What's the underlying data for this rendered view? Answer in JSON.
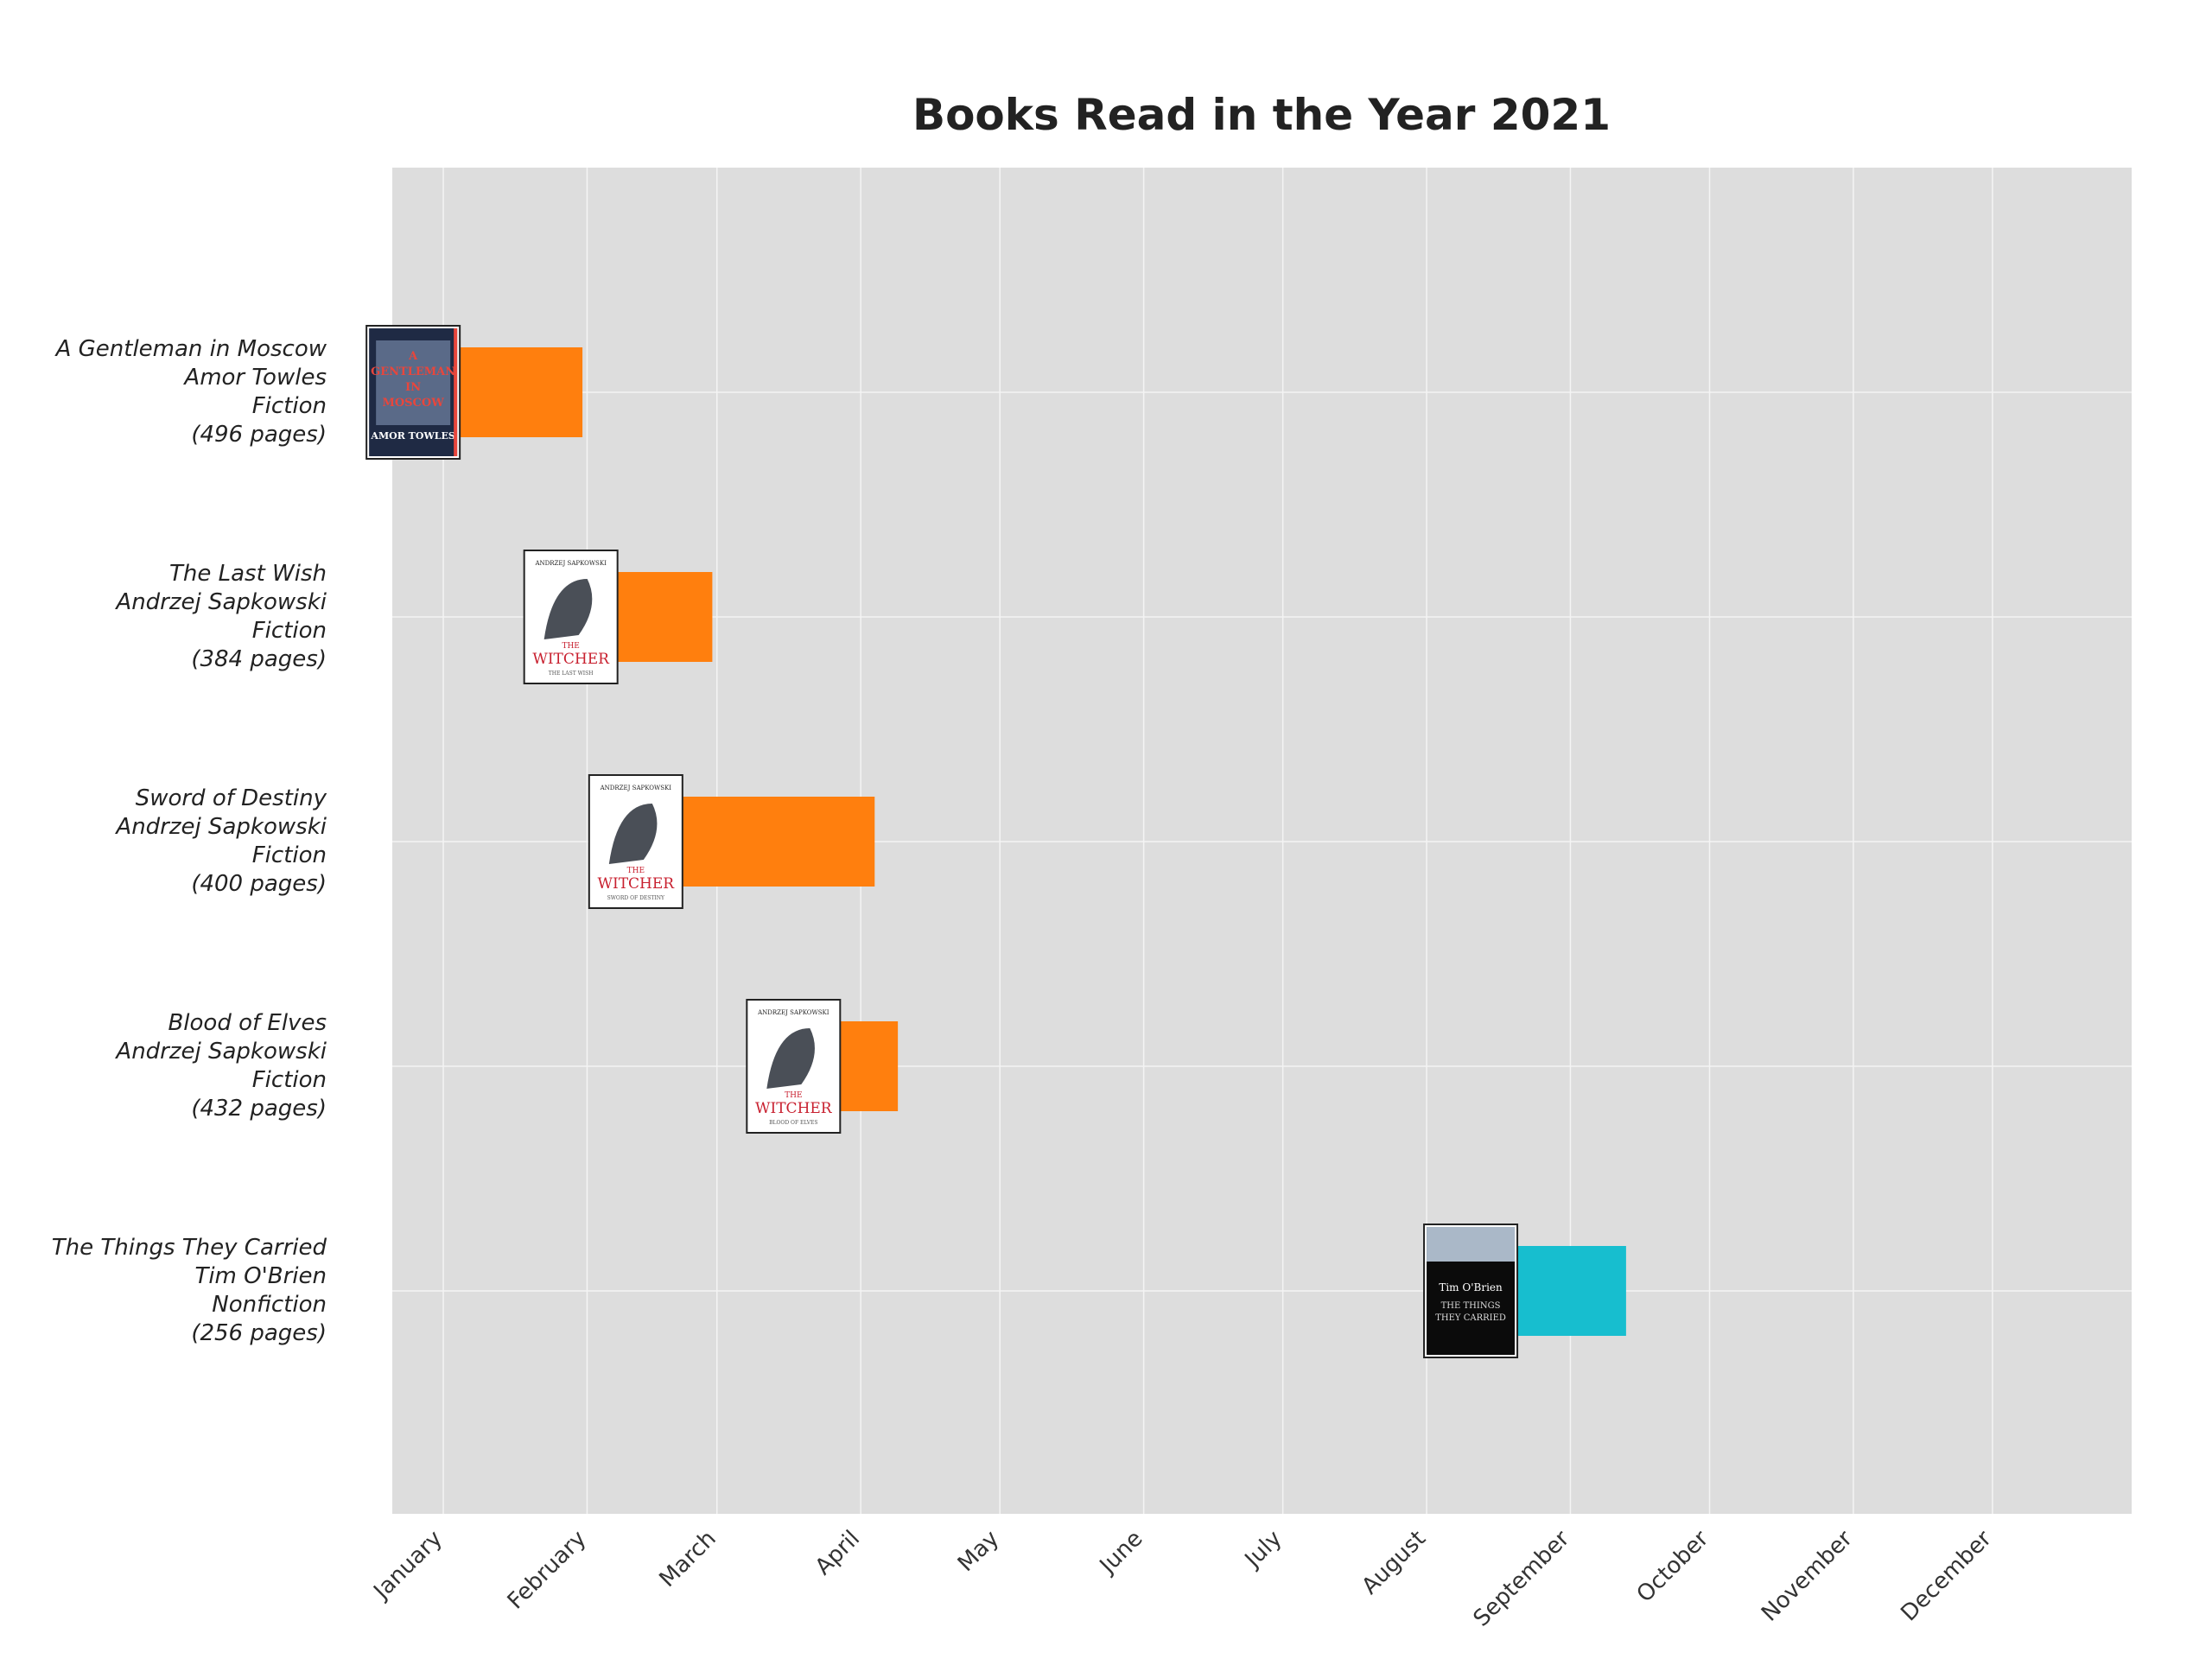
{
  "chart_data": {
    "type": "bar",
    "orientation": "horizontal",
    "title": "Books Read in the Year 2021",
    "xlabel": "",
    "ylabel": "",
    "x_ticks": [
      "January",
      "February",
      "March",
      "April",
      "May",
      "June",
      "July",
      "August",
      "September",
      "October",
      "November",
      "December"
    ],
    "x_range": [
      "2020-12-21",
      "2021-12-31"
    ],
    "grid": true,
    "legend": "none",
    "books": [
      {
        "title": "A Gentleman in Moscow",
        "author": "Amor Towles",
        "genre": "Fiction",
        "pages_label": "(496 pages)",
        "pages": 496,
        "start": "2021-01-04",
        "end": "2021-01-31",
        "color": "#ff7f0e",
        "cover": {
          "bg": "#1f2a44",
          "lines": [
            "A",
            "GENTLEMAN",
            "IN",
            "MOSCOW",
            "AMOR TOWLES"
          ],
          "accent": "#e8463c"
        }
      },
      {
        "title": "The Last Wish",
        "author": "Andrzej Sapkowski",
        "genre": "Fiction",
        "pages_label": "(384 pages)",
        "pages": 384,
        "start": "2021-02-07",
        "end": "2021-02-28",
        "color": "#ff7f0e",
        "cover": {
          "bg": "#ffffff",
          "lines": [
            "ANDRZEJ SAPKOWSKI",
            "THE",
            "WITCHER",
            "THE LAST WISH"
          ],
          "accent": "#c8202f"
        }
      },
      {
        "title": "Sword of Destiny",
        "author": "Andrzej Sapkowski",
        "genre": "Fiction",
        "pages_label": "(400 pages)",
        "pages": 400,
        "start": "2021-02-21",
        "end": "2021-04-04",
        "color": "#ff7f0e",
        "cover": {
          "bg": "#ffffff",
          "lines": [
            "ANDRZEJ SAPKOWSKI",
            "THE",
            "WITCHER",
            "SWORD OF DESTINY"
          ],
          "accent": "#c8202f"
        }
      },
      {
        "title": "Blood of Elves",
        "author": "Andrzej Sapkowski",
        "genre": "Fiction",
        "pages_label": "(432 pages)",
        "pages": 432,
        "start": "2021-03-27",
        "end": "2021-04-09",
        "color": "#ff7f0e",
        "cover": {
          "bg": "#ffffff",
          "lines": [
            "ANDRZEJ SAPKOWSKI",
            "THE",
            "WITCHER",
            "BLOOD OF ELVES"
          ],
          "accent": "#c8202f"
        }
      },
      {
        "title": "The Things They Carried",
        "author": "Tim O'Brien",
        "genre": "Nonfiction",
        "pages_label": "(256 pages)",
        "pages": 256,
        "start": "2021-08-20",
        "end": "2021-09-13",
        "color": "#17becf",
        "cover": {
          "bg": "#0b0b0b",
          "lines": [
            "Tim O'Brien",
            "THE THINGS",
            "THEY CARRIED"
          ],
          "accent": "#aab8c8"
        }
      }
    ]
  }
}
